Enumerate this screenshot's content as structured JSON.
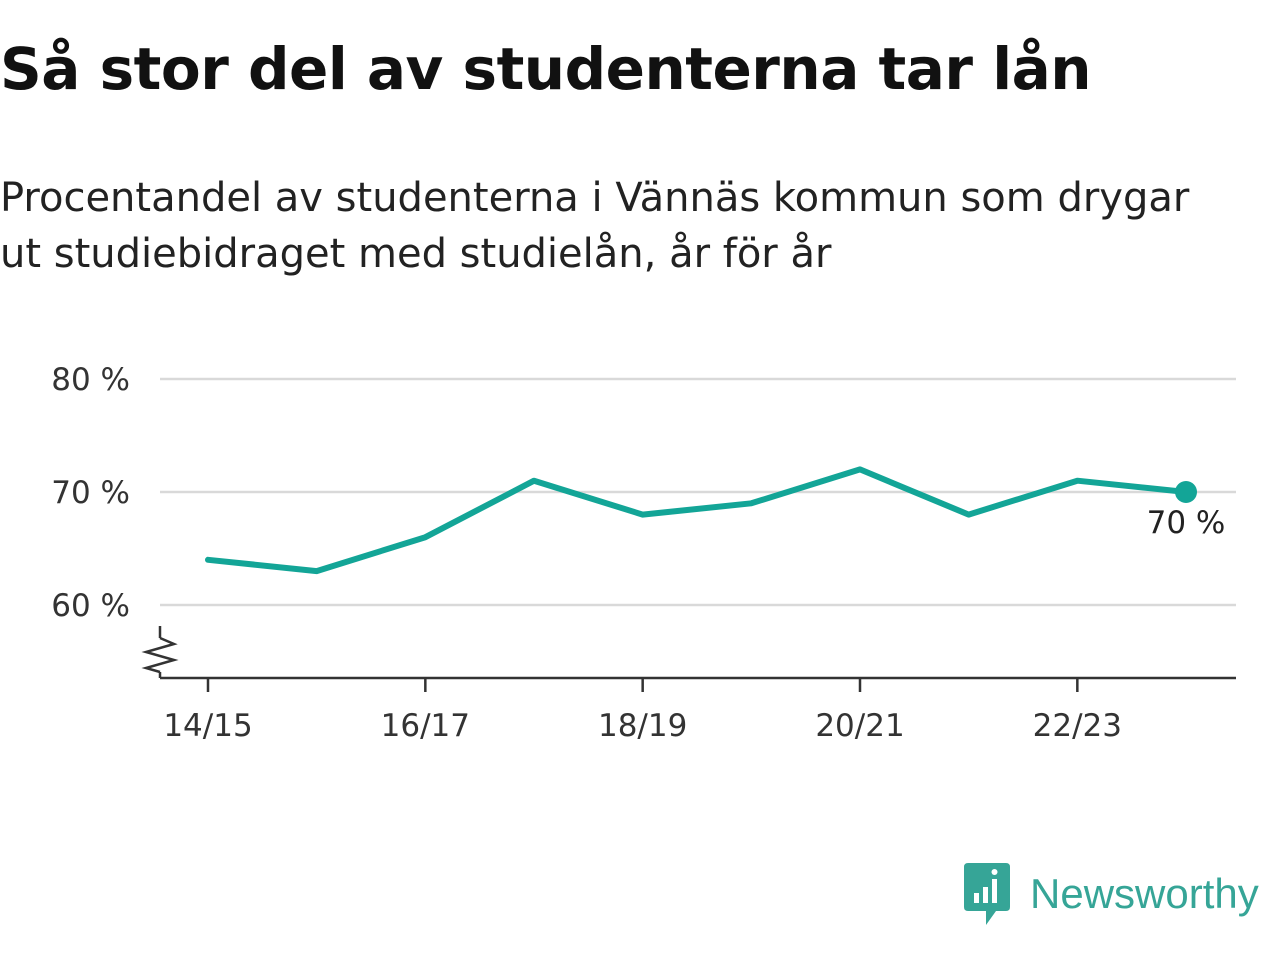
{
  "header": {
    "title": "Så stor del av studenterna tar lån",
    "subtitle": "Procentandel av studenterna i Vännäs kommun som drygar ut studiebidraget med studielån, år för år"
  },
  "chart_data": {
    "type": "line",
    "title": "Så stor del av studenterna tar lån",
    "subtitle": "Procentandel av studenterna i Vännäs kommun som drygar ut studiebidraget med studielån, år för år",
    "xlabel": "",
    "ylabel": "",
    "x": [
      "14/15",
      "15/16",
      "16/17",
      "17/18",
      "18/19",
      "19/20",
      "20/21",
      "21/22",
      "22/23",
      "23/24"
    ],
    "x_tick_labels": [
      "14/15",
      "16/17",
      "18/19",
      "20/21",
      "22/23"
    ],
    "series": [
      {
        "name": "",
        "values": [
          64,
          63,
          66,
          71,
          68,
          69,
          72,
          68,
          71,
          70
        ],
        "color": "#13a597"
      }
    ],
    "y_ticks": [
      60,
      70,
      80
    ],
    "y_tick_labels": [
      "60 %",
      "70 %",
      "80 %"
    ],
    "ylim": [
      54,
      80
    ],
    "y_axis_break": true,
    "grid": true,
    "end_label": "70 %",
    "colors": {
      "line": "#13a597",
      "grid": "#d9d9d9",
      "axis": "#333333"
    }
  },
  "brand": {
    "name": "Newsworthy",
    "icon": "newsworthy-logo-icon",
    "color": "#36a597"
  }
}
